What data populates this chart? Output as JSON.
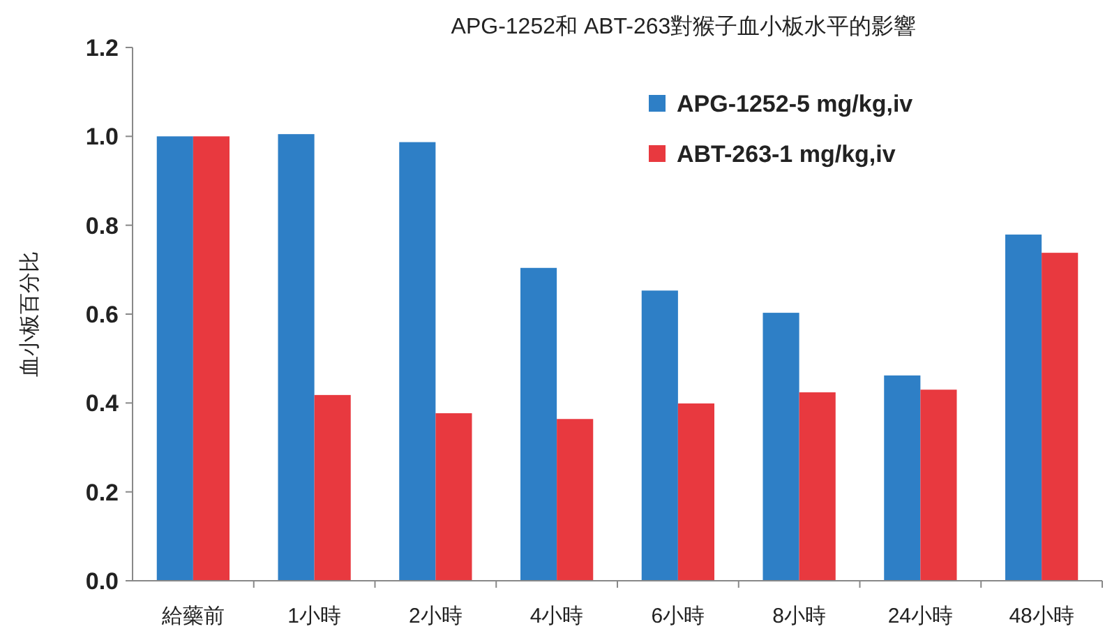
{
  "chart_data": {
    "type": "bar",
    "title": "APG-1252和 ABT-263對猴子血小板水平的影響",
    "ylabel": "血小板百分比",
    "categories": [
      "給藥前",
      "1小時",
      "2小時",
      "4小時",
      "6小時",
      "8小時",
      "24小時",
      "48小時"
    ],
    "series": [
      {
        "name": "APG-1252-5 mg/kg,iv",
        "color": "#2e7fc6",
        "values": [
          1.0,
          1.005,
          0.987,
          0.704,
          0.653,
          0.603,
          0.462,
          0.779
        ]
      },
      {
        "name": "ABT-263-1 mg/kg,iv",
        "color": "#e8393f",
        "values": [
          1.0,
          0.418,
          0.377,
          0.364,
          0.399,
          0.424,
          0.43,
          0.738
        ]
      }
    ],
    "ylim": [
      0,
      1.2
    ],
    "yticks": [
      {
        "value": 0,
        "label": "0.0"
      },
      0.2,
      0.4,
      0.6,
      0.8,
      {
        "value": 1,
        "label": "1.0"
      },
      1.2
    ],
    "legend": "top right"
  }
}
